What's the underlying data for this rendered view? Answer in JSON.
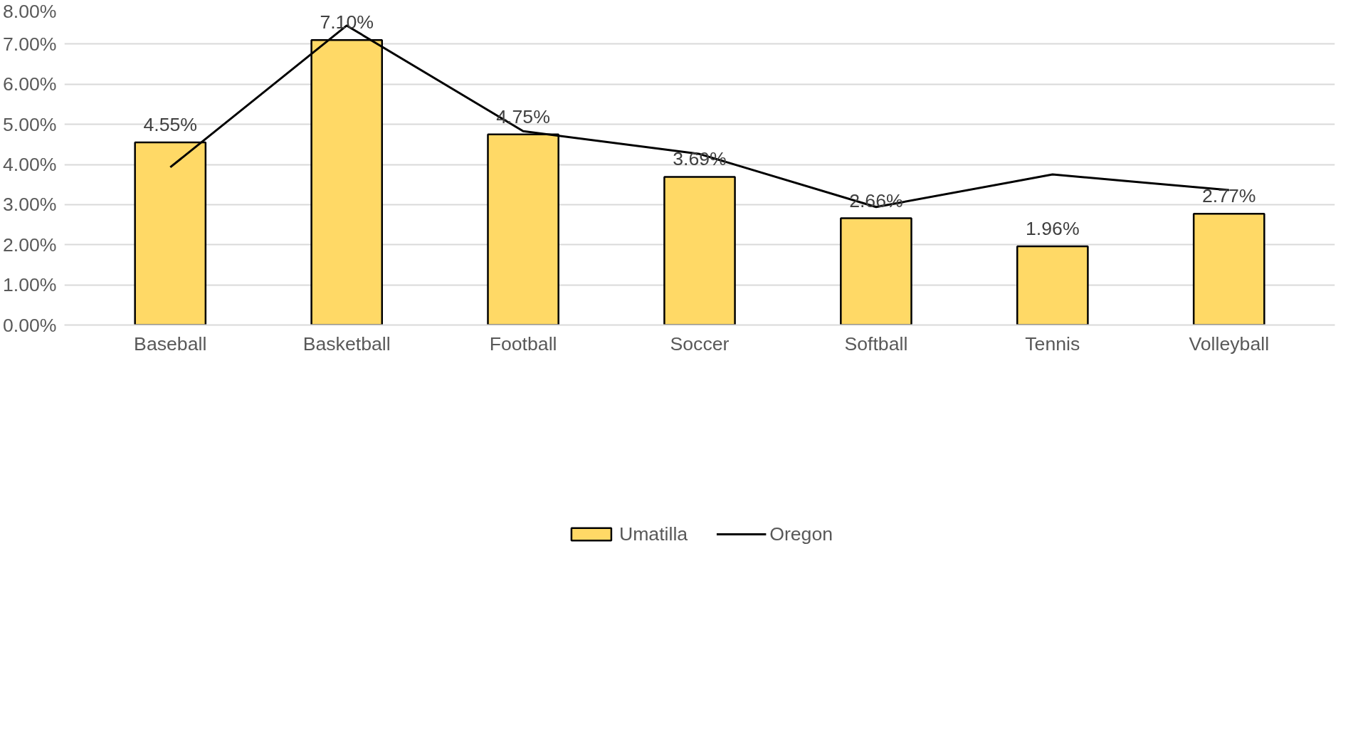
{
  "chart_data": {
    "type": "bar",
    "categories": [
      "Baseball",
      "Basketball",
      "Football",
      "Soccer",
      "Softball",
      "Tennis",
      "Volleyball"
    ],
    "series": [
      {
        "name": "Umatilla",
        "color": "#ffd966",
        "values": [
          4.55,
          7.1,
          4.75,
          3.69,
          2.66,
          1.96,
          2.77
        ],
        "value_labels": [
          "4.55%",
          "7.10%",
          "4.75%",
          "3.69%",
          "2.66%",
          "1.96%",
          "2.77%"
        ]
      },
      {
        "name": "Oregon",
        "type": "line",
        "color": "#000000",
        "values": [
          3.93,
          7.46,
          4.83,
          4.26,
          2.94,
          3.75,
          3.36
        ]
      }
    ],
    "ylim": [
      0,
      8
    ],
    "yticks": [
      {
        "value": 0,
        "label": "0.00%"
      },
      {
        "value": 1,
        "label": "1.00%"
      },
      {
        "value": 2,
        "label": "2.00%"
      },
      {
        "value": 3,
        "label": "3.00%"
      },
      {
        "value": 4,
        "label": "4.00%"
      },
      {
        "value": 5,
        "label": "5.00%"
      },
      {
        "value": 6,
        "label": "6.00%"
      },
      {
        "value": 7,
        "label": "7.00%"
      },
      {
        "value": 8,
        "label": "8.00%"
      }
    ],
    "grid": "y",
    "legend": "bottom",
    "marker": "none",
    "line_style": "solid"
  }
}
